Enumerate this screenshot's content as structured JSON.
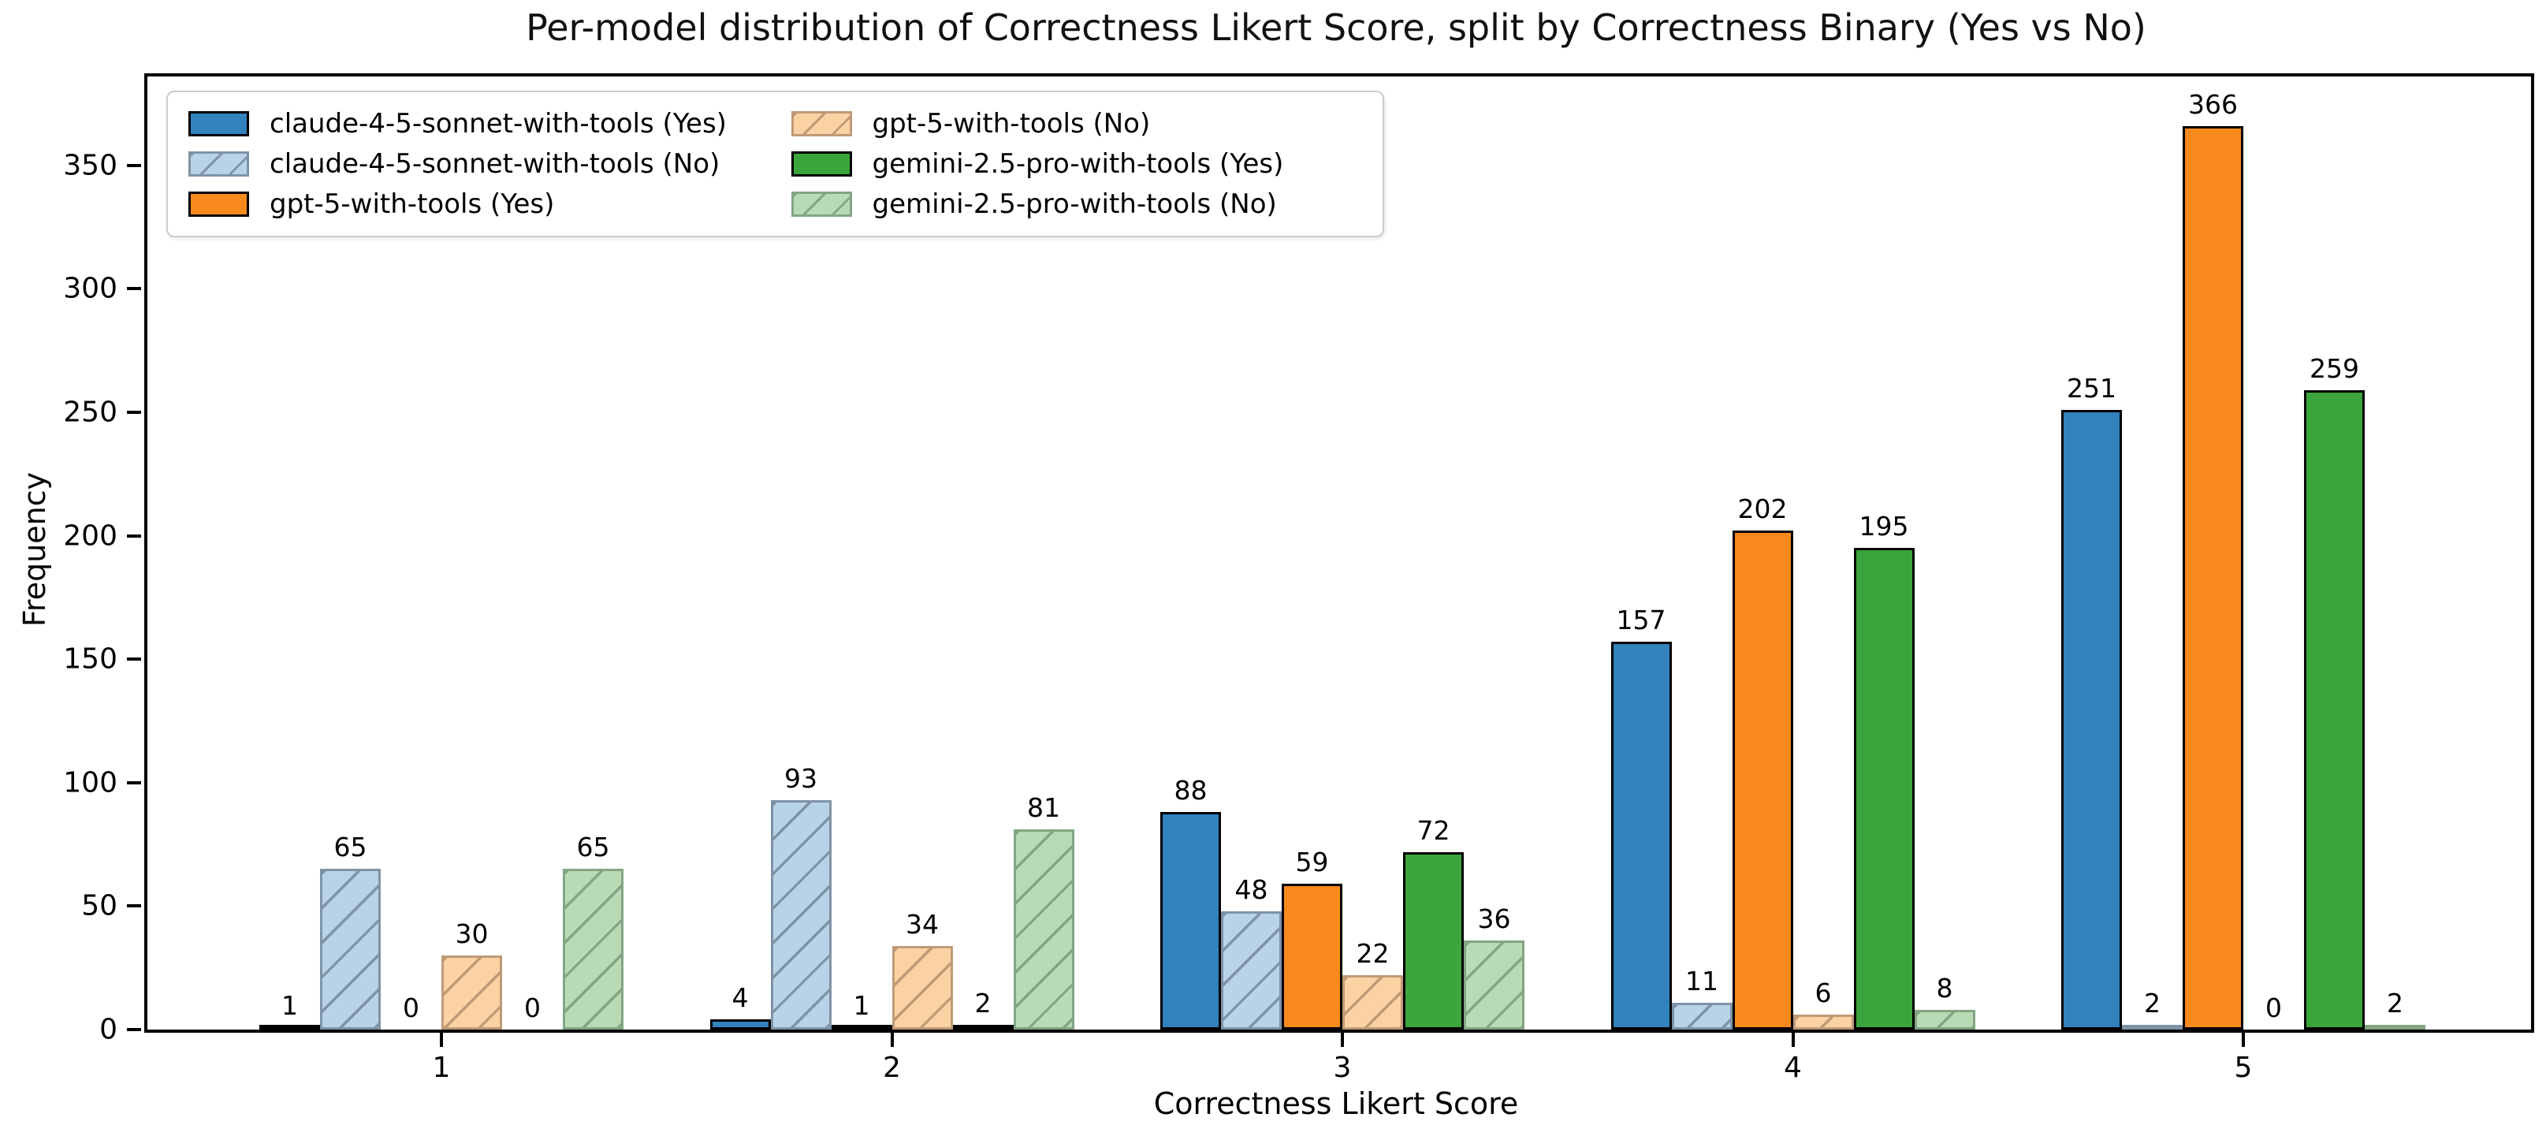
{
  "title": "Per-model distribution of Correctness Likert Score, split by Correctness Binary (Yes vs No)",
  "x_axis": {
    "label": "Correctness Likert Score",
    "tick_labels": [
      "1",
      "2",
      "3",
      "4",
      "5"
    ]
  },
  "y_axis": {
    "label": "Frequency",
    "tick_values": [
      0,
      50,
      100,
      150,
      200,
      250,
      300,
      350
    ]
  },
  "colors": {
    "claude_yes_fill": "#3282bd",
    "claude_yes_edge": "#000000",
    "claude_no_fill": "#b8d3e8",
    "claude_no_edge": "#7e93a5",
    "gpt5_yes_fill": "#f8891d",
    "gpt5_yes_edge": "#000000",
    "gpt5_no_fill": "#fbd2a4",
    "gpt5_no_edge": "#c09a76",
    "gemini_yes_fill": "#3ca43c",
    "gemini_yes_edge": "#000000",
    "gemini_no_fill": "#b8dab4",
    "gemini_no_edge": "#83a584"
  },
  "chart_data": {
    "type": "bar",
    "title": "Per-model distribution of Correctness Likert Score, split by Correctness Binary (Yes vs No)",
    "xlabel": "Correctness Likert Score",
    "ylabel": "Frequency",
    "categories": [
      1,
      2,
      3,
      4,
      5
    ],
    "ylim": [
      0,
      386
    ],
    "yticks": [
      0,
      50,
      100,
      150,
      200,
      250,
      300,
      350
    ],
    "grid": false,
    "legend_position": "upper left",
    "legend_columns": 2,
    "bar_value_labels": true,
    "series": [
      {
        "name": "claude-4-5-sonnet-with-tools (Yes)",
        "values": [
          1,
          4,
          88,
          157,
          251
        ],
        "fill": "#3282bd",
        "edge": "#000000",
        "hatch": false
      },
      {
        "name": "claude-4-5-sonnet-with-tools (No)",
        "values": [
          65,
          93,
          48,
          11,
          2
        ],
        "fill": "#b8d3e8",
        "edge": "#7e93a5",
        "hatch": true
      },
      {
        "name": "gpt-5-with-tools (Yes)",
        "values": [
          0,
          1,
          59,
          202,
          366
        ],
        "fill": "#f8891d",
        "edge": "#000000",
        "hatch": false
      },
      {
        "name": "gpt-5-with-tools (No)",
        "values": [
          30,
          34,
          22,
          6,
          0
        ],
        "fill": "#fbd2a4",
        "edge": "#c09a76",
        "hatch": true
      },
      {
        "name": "gemini-2.5-pro-with-tools (Yes)",
        "values": [
          0,
          2,
          72,
          195,
          259
        ],
        "fill": "#3ca43c",
        "edge": "#000000",
        "hatch": false
      },
      {
        "name": "gemini-2.5-pro-with-tools (No)",
        "values": [
          65,
          81,
          36,
          8,
          2
        ],
        "fill": "#b8dab4",
        "edge": "#83a584",
        "hatch": true
      }
    ]
  }
}
